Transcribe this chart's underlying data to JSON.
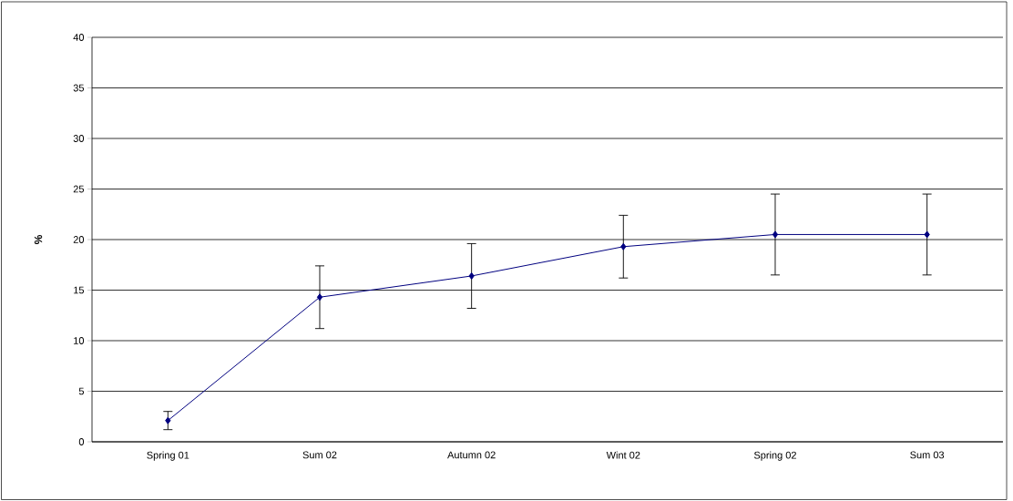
{
  "chart_data": {
    "type": "line",
    "ylabel": "%",
    "categories": [
      "Spring 01",
      "Sum 02",
      "Autumn 02",
      "Wint 02",
      "Spring 02",
      "Sum 03"
    ],
    "series": [
      {
        "color": "#000080",
        "values": [
          2.1,
          14.3,
          16.4,
          19.3,
          20.5,
          20.5
        ],
        "errors": [
          0.9,
          3.1,
          3.2,
          3.1,
          4,
          4
        ]
      }
    ],
    "ylim": [
      0,
      40
    ],
    "yticks": [
      0,
      5,
      10,
      15,
      20,
      25,
      30,
      35,
      40
    ],
    "grid": "y",
    "marker": "diamond",
    "line_style": "solid"
  }
}
